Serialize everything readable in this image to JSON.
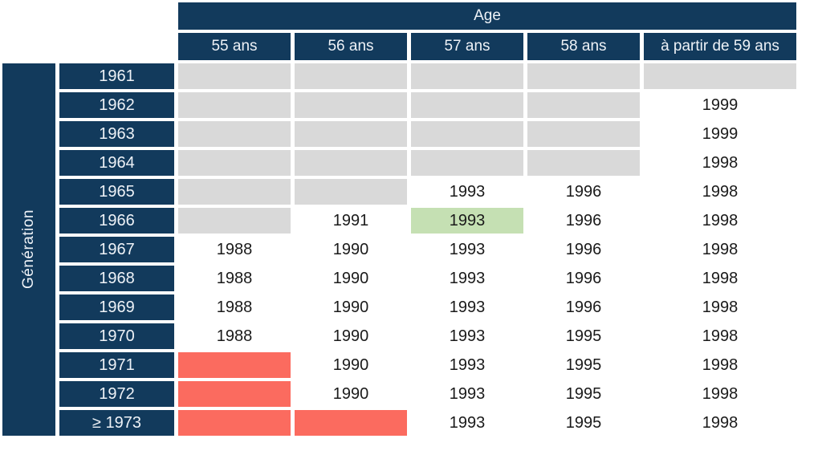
{
  "colors": {
    "header_navy": "#123a5c",
    "header_text": "#eef2f7",
    "empty_gray": "#d9d9d9",
    "highlight_green": "#c5e0b3",
    "blocked_red": "#fb6b5f",
    "cell_text": "#1a1a1a",
    "background": "#ffffff"
  },
  "chart_data": {
    "type": "table",
    "top_header": "Age",
    "left_header": "Génération",
    "columns": [
      "55 ans",
      "56 ans",
      "57 ans",
      "58 ans",
      "à partir de 59 ans"
    ],
    "rows": [
      {
        "label": "1961",
        "cells": [
          {
            "text": "",
            "color": "gray"
          },
          {
            "text": "",
            "color": "gray"
          },
          {
            "text": "",
            "color": "gray"
          },
          {
            "text": "",
            "color": "gray"
          },
          {
            "text": "",
            "color": "gray"
          }
        ]
      },
      {
        "label": "1962",
        "cells": [
          {
            "text": "",
            "color": "gray"
          },
          {
            "text": "",
            "color": "gray"
          },
          {
            "text": "",
            "color": "gray"
          },
          {
            "text": "",
            "color": "gray"
          },
          {
            "text": "1999",
            "color": "white"
          }
        ]
      },
      {
        "label": "1963",
        "cells": [
          {
            "text": "",
            "color": "gray"
          },
          {
            "text": "",
            "color": "gray"
          },
          {
            "text": "",
            "color": "gray"
          },
          {
            "text": "",
            "color": "gray"
          },
          {
            "text": "1999",
            "color": "white"
          }
        ]
      },
      {
        "label": "1964",
        "cells": [
          {
            "text": "",
            "color": "gray"
          },
          {
            "text": "",
            "color": "gray"
          },
          {
            "text": "",
            "color": "gray"
          },
          {
            "text": "",
            "color": "gray"
          },
          {
            "text": "1998",
            "color": "white"
          }
        ]
      },
      {
        "label": "1965",
        "cells": [
          {
            "text": "",
            "color": "gray"
          },
          {
            "text": "",
            "color": "gray"
          },
          {
            "text": "1993",
            "color": "white"
          },
          {
            "text": "1996",
            "color": "white"
          },
          {
            "text": "1998",
            "color": "white"
          }
        ]
      },
      {
        "label": "1966",
        "cells": [
          {
            "text": "",
            "color": "gray"
          },
          {
            "text": "1991",
            "color": "white"
          },
          {
            "text": "1993",
            "color": "green"
          },
          {
            "text": "1996",
            "color": "white"
          },
          {
            "text": "1998",
            "color": "white"
          }
        ]
      },
      {
        "label": "1967",
        "cells": [
          {
            "text": "1988",
            "color": "white"
          },
          {
            "text": "1990",
            "color": "white"
          },
          {
            "text": "1993",
            "color": "white"
          },
          {
            "text": "1996",
            "color": "white"
          },
          {
            "text": "1998",
            "color": "white"
          }
        ]
      },
      {
        "label": "1968",
        "cells": [
          {
            "text": "1988",
            "color": "white"
          },
          {
            "text": "1990",
            "color": "white"
          },
          {
            "text": "1993",
            "color": "white"
          },
          {
            "text": "1996",
            "color": "white"
          },
          {
            "text": "1998",
            "color": "white"
          }
        ]
      },
      {
        "label": "1969",
        "cells": [
          {
            "text": "1988",
            "color": "white"
          },
          {
            "text": "1990",
            "color": "white"
          },
          {
            "text": "1993",
            "color": "white"
          },
          {
            "text": "1996",
            "color": "white"
          },
          {
            "text": "1998",
            "color": "white"
          }
        ]
      },
      {
        "label": "1970",
        "cells": [
          {
            "text": "1988",
            "color": "white"
          },
          {
            "text": "1990",
            "color": "white"
          },
          {
            "text": "1993",
            "color": "white"
          },
          {
            "text": "1995",
            "color": "white"
          },
          {
            "text": "1998",
            "color": "white"
          }
        ]
      },
      {
        "label": "1971",
        "cells": [
          {
            "text": "",
            "color": "red"
          },
          {
            "text": "1990",
            "color": "white"
          },
          {
            "text": "1993",
            "color": "white"
          },
          {
            "text": "1995",
            "color": "white"
          },
          {
            "text": "1998",
            "color": "white"
          }
        ]
      },
      {
        "label": "1972",
        "cells": [
          {
            "text": "",
            "color": "red"
          },
          {
            "text": "1990",
            "color": "white"
          },
          {
            "text": "1993",
            "color": "white"
          },
          {
            "text": "1995",
            "color": "white"
          },
          {
            "text": "1998",
            "color": "white"
          }
        ]
      },
      {
        "label": "≥ 1973",
        "cells": [
          {
            "text": "",
            "color": "red"
          },
          {
            "text": "",
            "color": "red"
          },
          {
            "text": "1993",
            "color": "white"
          },
          {
            "text": "1995",
            "color": "white"
          },
          {
            "text": "1998",
            "color": "white"
          }
        ]
      }
    ]
  }
}
